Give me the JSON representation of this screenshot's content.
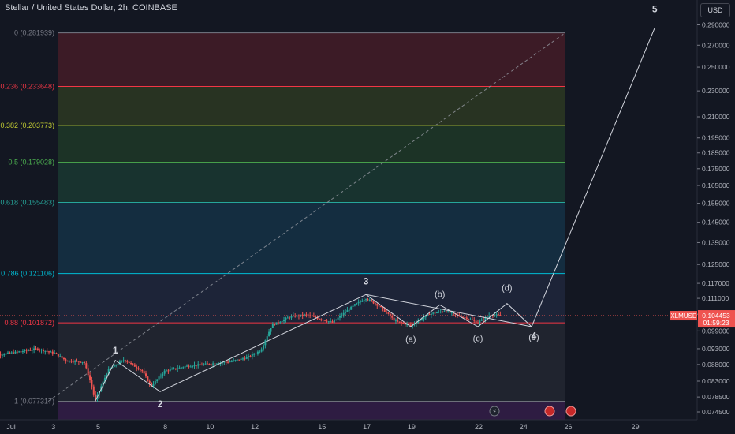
{
  "header": {
    "title": "Stellar / United States Dollar, 2h, COINBASE",
    "currency_button": "USD"
  },
  "colors": {
    "background": "#131722",
    "candle_up": "#26a69a",
    "candle_down": "#ef5350",
    "fib_zones": [
      "#5e1f2a",
      "#3a4a22",
      "#244a2a",
      "#1d4a3a",
      "#16405a",
      "#26304a",
      "#2b2f3a",
      "#5a1e26",
      "#3a2050"
    ]
  },
  "chart_data": {
    "type": "candlestick",
    "symbol": "XLMUSD",
    "last_price": "0.104453",
    "countdown": "01:59:23",
    "y_scale": "log",
    "ylim": [
      0.0735,
      0.305
    ],
    "y_ticks": [
      "0.290000",
      "0.270000",
      "0.250000",
      "0.230000",
      "0.210000",
      "0.195000",
      "0.185000",
      "0.175000",
      "0.165000",
      "0.155000",
      "0.145000",
      "0.135000",
      "0.125000",
      "0.117000",
      "0.111000",
      "0.105000",
      "0.099000",
      "0.093000",
      "0.088000",
      "0.083000",
      "0.078500",
      "0.074500"
    ],
    "x_ticks": [
      "Jul",
      "3",
      "5",
      "8",
      "10",
      "12",
      "15",
      "17",
      "19",
      "22",
      "24",
      "26",
      "29"
    ],
    "fib_levels": [
      {
        "ratio": "0",
        "price": 0.281939,
        "label": "0 (0.281939)",
        "color": "#787b86"
      },
      {
        "ratio": "0.236",
        "price": 0.233648,
        "label": "0.236 (0.233648)",
        "color": "#f23645"
      },
      {
        "ratio": "0.382",
        "price": 0.203773,
        "label": "0.382 (0.203773)",
        "color": "#c0ca33"
      },
      {
        "ratio": "0.5",
        "price": 0.179028,
        "label": "0.5 (0.179028)",
        "color": "#4caf50"
      },
      {
        "ratio": "0.618",
        "price": 0.155483,
        "label": "0.618 (0.155483)",
        "color": "#26a69a"
      },
      {
        "ratio": "0.786",
        "price": 0.121106,
        "label": "0.786 (0.121106)",
        "color": "#00bcd4"
      },
      {
        "ratio": "0.88",
        "price": 0.101872,
        "label": "0.88 (0.101872)",
        "color": "#f23645"
      },
      {
        "ratio": "1",
        "price": 0.077317,
        "label": "1 (0.077317)",
        "color": "#787b86"
      }
    ],
    "wave_labels": [
      {
        "text": "1",
        "day": 5.8,
        "price": 0.0915
      },
      {
        "text": "2",
        "day": 7.8,
        "price": 0.0758
      },
      {
        "text": "3",
        "day": 17.0,
        "price": 0.1165
      },
      {
        "text": "(a)",
        "day": 19.0,
        "price": 0.0952
      },
      {
        "text": "(b)",
        "day": 20.3,
        "price": 0.1115
      },
      {
        "text": "(c)",
        "day": 22.0,
        "price": 0.0955
      },
      {
        "text": "(d)",
        "day": 23.3,
        "price": 0.114
      },
      {
        "text": "4",
        "day": 24.5,
        "price": 0.0962
      },
      {
        "text": "(e)",
        "day": 24.5,
        "price": 0.0958
      },
      {
        "text": "5",
        "day": 29.9,
        "price": 0.303
      }
    ],
    "wave_path": [
      {
        "day": 4.9,
        "price": 0.0773
      },
      {
        "day": 5.8,
        "price": 0.0893
      },
      {
        "day": 7.8,
        "price": 0.08
      },
      {
        "day": 17.0,
        "price": 0.1125
      },
      {
        "day": 19.0,
        "price": 0.1005
      },
      {
        "day": 20.3,
        "price": 0.1085
      },
      {
        "day": 22.0,
        "price": 0.1005
      },
      {
        "day": 23.3,
        "price": 0.109
      },
      {
        "day": 24.4,
        "price": 0.1005
      },
      {
        "day": 29.9,
        "price": 0.287
      }
    ],
    "triangle_upper": [
      {
        "day": 17.0,
        "price": 0.1125
      },
      {
        "day": 24.4,
        "price": 0.1005
      }
    ],
    "dashed_diagonal": [
      {
        "day": 2.8,
        "price": 0.077317
      },
      {
        "day": 25.9,
        "price": 0.281939
      }
    ],
    "price_waypoints": [
      {
        "day": 0.0,
        "price": 0.0905
      },
      {
        "day": 1.3,
        "price": 0.0918
      },
      {
        "day": 2.3,
        "price": 0.093
      },
      {
        "day": 3.1,
        "price": 0.0915
      },
      {
        "day": 3.6,
        "price": 0.0892
      },
      {
        "day": 4.4,
        "price": 0.0888
      },
      {
        "day": 4.75,
        "price": 0.0815
      },
      {
        "day": 4.9,
        "price": 0.0775
      },
      {
        "day": 5.5,
        "price": 0.0865
      },
      {
        "day": 6.2,
        "price": 0.0895
      },
      {
        "day": 7.0,
        "price": 0.086
      },
      {
        "day": 7.4,
        "price": 0.0815
      },
      {
        "day": 8.0,
        "price": 0.086
      },
      {
        "day": 9.0,
        "price": 0.0875
      },
      {
        "day": 10.0,
        "price": 0.0882
      },
      {
        "day": 11.0,
        "price": 0.089
      },
      {
        "day": 11.7,
        "price": 0.0902
      },
      {
        "day": 12.3,
        "price": 0.0925
      },
      {
        "day": 12.8,
        "price": 0.101
      },
      {
        "day": 13.6,
        "price": 0.104
      },
      {
        "day": 14.3,
        "price": 0.1048
      },
      {
        "day": 15.5,
        "price": 0.102
      },
      {
        "day": 16.5,
        "price": 0.1085
      },
      {
        "day": 17.0,
        "price": 0.111
      },
      {
        "day": 17.6,
        "price": 0.108
      },
      {
        "day": 18.3,
        "price": 0.1025
      },
      {
        "day": 19.0,
        "price": 0.1008
      },
      {
        "day": 19.8,
        "price": 0.105
      },
      {
        "day": 20.5,
        "price": 0.1062
      },
      {
        "day": 21.5,
        "price": 0.1035
      },
      {
        "day": 22.0,
        "price": 0.102
      },
      {
        "day": 22.6,
        "price": 0.105
      },
      {
        "day": 23.0,
        "price": 0.10445
      }
    ],
    "future_end_day": 26.0
  }
}
